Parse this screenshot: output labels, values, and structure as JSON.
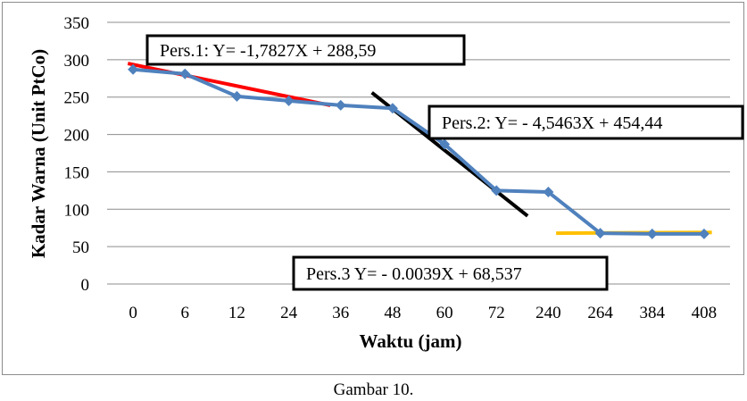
{
  "chart_data": {
    "type": "line",
    "xlabel": "Waktu (jam)",
    "ylabel": "Kadar Warna (Unit PtCo)",
    "categories": [
      "0",
      "6",
      "12",
      "24",
      "36",
      "48",
      "60",
      "72",
      "240",
      "264",
      "384",
      "408"
    ],
    "series": [
      {
        "values": [
          287,
          281,
          251,
          245,
          239,
          235,
          187,
          125,
          123,
          68,
          67,
          67
        ],
        "color": "#4f81bd"
      }
    ],
    "ylim": [
      0,
      350
    ],
    "yticks": [
      0,
      50,
      100,
      150,
      200,
      250,
      300,
      350
    ],
    "grid": true,
    "trendlines": [
      {
        "label": "Pers.1: Y= -1,7827X + 288,59",
        "color": "#ff0000",
        "from": [
          -0.1,
          295
        ],
        "to": [
          3.8,
          239
        ]
      },
      {
        "label": "Pers.2: Y= - 4,5463X + 454,44",
        "color": "#000000",
        "from": [
          4.6,
          256
        ],
        "to": [
          7.6,
          91
        ]
      },
      {
        "label": "Pers.3 Y= - 0.0039X + 68,537",
        "color": "#ffc000",
        "from": [
          8.15,
          68
        ],
        "to": [
          11.15,
          69
        ]
      }
    ]
  },
  "caption": "Gambar 10."
}
